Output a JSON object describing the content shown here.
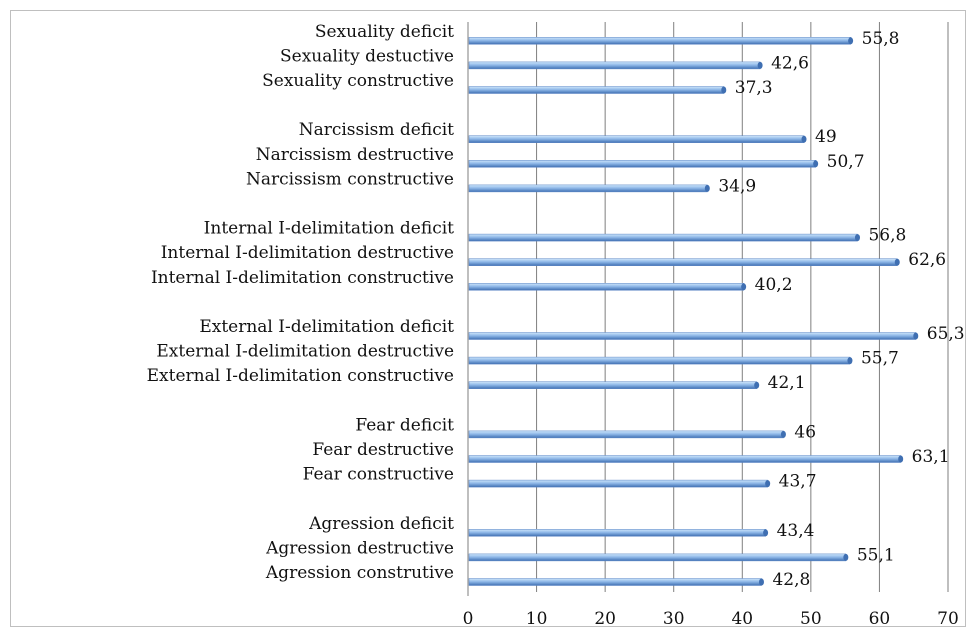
{
  "chart_data": {
    "type": "bar",
    "orientation": "horizontal",
    "categories": [
      "Agression construtive",
      "Agression destructive",
      "Agression deficit",
      "Fear constructive",
      "Fear destructive",
      "Fear deficit",
      "External I-delimitation constructive",
      "External I-delimitation destructive",
      "External I-delimitation deficit",
      "Internal I-delimitation constructive",
      "Internal I-delimitation destructive",
      "Internal I-delimitation deficit",
      "Narcissism constructive",
      "Narcissism destructive",
      "Narcissism deficit",
      "Sexuality constructive",
      "Sexuality destuctive",
      "Sexuality deficit"
    ],
    "values": [
      42.8,
      55.1,
      43.4,
      43.7,
      63.1,
      46,
      42.1,
      55.7,
      65.3,
      40.2,
      62.6,
      56.8,
      34.9,
      50.7,
      49,
      37.3,
      42.6,
      55.8
    ],
    "value_labels": [
      "42,8",
      "55,1",
      "43,4",
      "43,7",
      "63,1",
      "46",
      "42,1",
      "55,7",
      "65,3",
      "40,2",
      "62,6",
      "56,8",
      "34,9",
      "50,7",
      "49",
      "37,3",
      "42,6",
      "55,8"
    ],
    "group_size": 3,
    "xlim": [
      0,
      70
    ],
    "x_ticks": [
      "0",
      "10",
      "20",
      "30",
      "40",
      "50",
      "60",
      "70"
    ],
    "title": "",
    "xlabel": "",
    "ylabel": "",
    "grid": "vertical",
    "legend": "none",
    "colors": {
      "bar_top": "#cfe6fb",
      "bar_mid": "#8fb8e8",
      "bar_bottom": "#3f6fb2",
      "gridline": "#7f7f7f",
      "frame": "#bfbfbf"
    }
  }
}
